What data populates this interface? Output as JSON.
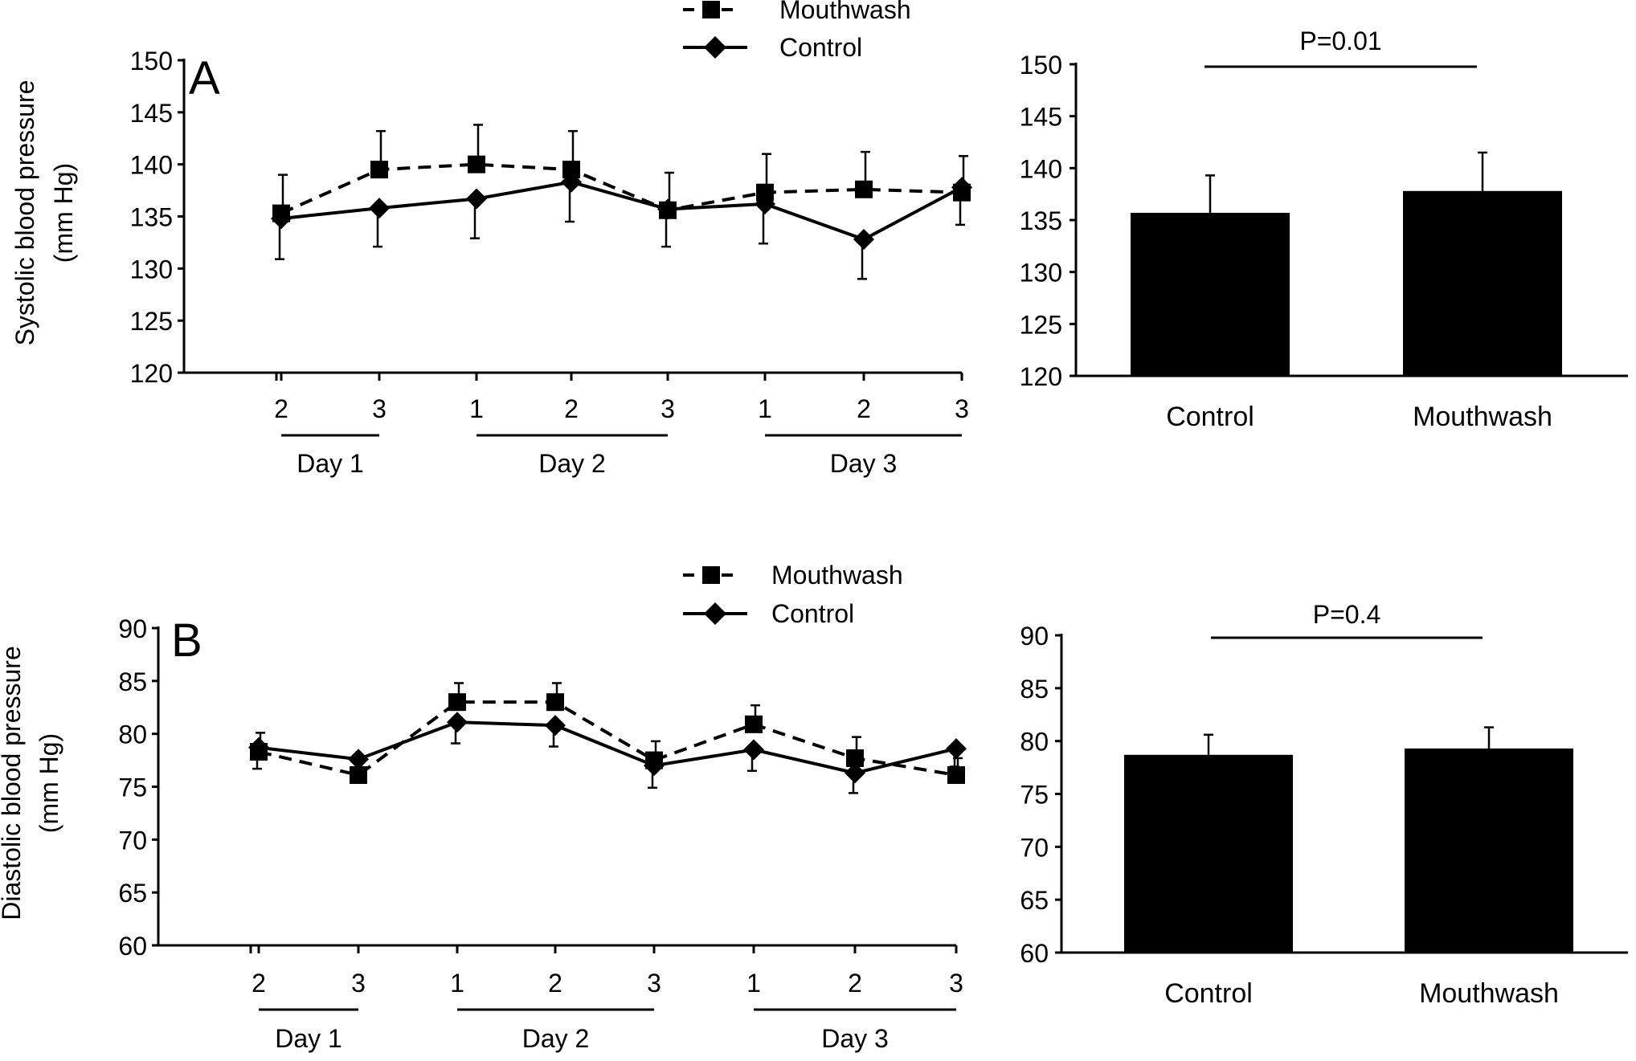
{
  "chart_data": [
    {
      "panel_label": "A",
      "type": "line",
      "ylabel": "Systolic blood pressure",
      "ylabel_unit": "(mm Hg)",
      "ylim": [
        120,
        150
      ],
      "yticks": [
        120,
        125,
        130,
        135,
        140,
        145,
        150
      ],
      "x_ticks": [
        "2",
        "3",
        "1",
        "2",
        "3",
        "1",
        "2",
        "3"
      ],
      "day_groups": [
        {
          "label": "Day 1",
          "from": 0,
          "to": 1
        },
        {
          "label": "Day 2",
          "from": 2,
          "to": 4
        },
        {
          "label": "Day 3",
          "from": 5,
          "to": 7
        }
      ],
      "legend": [
        "Mouthwash",
        "Control"
      ],
      "series": [
        {
          "name": "Mouthwash",
          "style": "dashed",
          "marker": "square",
          "values": [
            135.3,
            139.5,
            140.0,
            139.5,
            135.6,
            137.3,
            137.6,
            137.3
          ],
          "errors": [
            3.7,
            3.7,
            3.8,
            3.7,
            3.6,
            3.7,
            3.6,
            3.5
          ]
        },
        {
          "name": "Control",
          "style": "solid",
          "marker": "diamond",
          "values": [
            134.8,
            135.8,
            136.7,
            138.3,
            135.7,
            136.2,
            132.8,
            137.8
          ],
          "errors": [
            3.9,
            3.7,
            3.8,
            3.8,
            3.6,
            3.8,
            3.8,
            3.6
          ]
        }
      ]
    },
    {
      "type": "bar",
      "ylim": [
        120,
        150
      ],
      "yticks": [
        120,
        125,
        130,
        135,
        140,
        145,
        150
      ],
      "categories": [
        "Control",
        "Mouthwash"
      ],
      "values": [
        135.7,
        137.8
      ],
      "errors": [
        3.6,
        3.7
      ],
      "annotation": "P=0.01"
    },
    {
      "panel_label": "B",
      "type": "line",
      "ylabel": "Diastolic blood pressure",
      "ylabel_unit": "(mm Hg)",
      "ylim": [
        60,
        90
      ],
      "yticks": [
        60,
        65,
        70,
        75,
        80,
        85,
        90
      ],
      "x_ticks": [
        "2",
        "3",
        "1",
        "2",
        "3",
        "1",
        "2",
        "3"
      ],
      "day_groups": [
        {
          "label": "Day 1",
          "from": 0,
          "to": 1
        },
        {
          "label": "Day 2",
          "from": 2,
          "to": 4
        },
        {
          "label": "Day 3",
          "from": 5,
          "to": 7
        }
      ],
      "legend": [
        "Mouthwash",
        "Control"
      ],
      "series": [
        {
          "name": "Mouthwash",
          "style": "dashed",
          "marker": "square",
          "values": [
            78.3,
            76.1,
            83.0,
            83.0,
            77.5,
            80.9,
            77.7,
            76.1
          ],
          "errors": [
            1.8,
            1.6,
            1.8,
            1.8,
            1.8,
            1.8,
            2.0,
            1.6
          ]
        },
        {
          "name": "Control",
          "style": "solid",
          "marker": "diamond",
          "values": [
            78.7,
            77.6,
            81.1,
            80.8,
            77.0,
            78.5,
            76.3,
            78.6
          ],
          "errors": [
            2.0,
            1.6,
            2.0,
            2.0,
            2.1,
            2.0,
            1.9,
            1.7
          ]
        }
      ]
    },
    {
      "type": "bar",
      "ylim": [
        60,
        90
      ],
      "yticks": [
        60,
        65,
        70,
        75,
        80,
        85,
        90
      ],
      "categories": [
        "Control",
        "Mouthwash"
      ],
      "values": [
        78.7,
        79.3
      ],
      "errors": [
        1.9,
        2.0
      ],
      "annotation": "P=0.4"
    }
  ]
}
